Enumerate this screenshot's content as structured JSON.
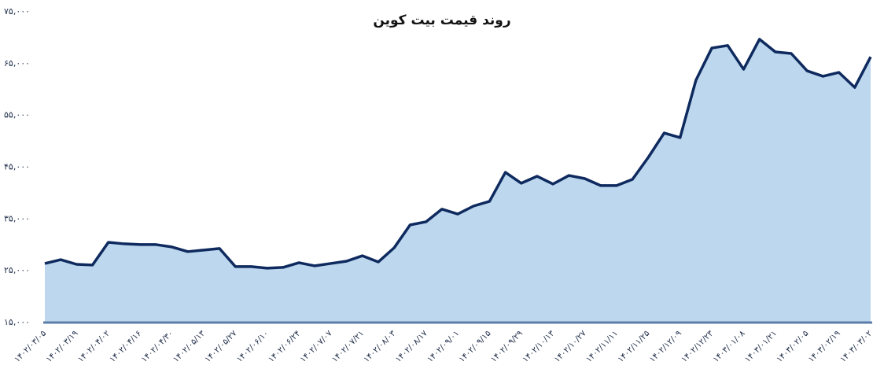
{
  "chart_data": {
    "type": "area",
    "title": "روند قیمت بیت کوین",
    "categories": [
      "۱۴۰۲/۰۳/۰۵",
      null,
      "۱۴۰۲/۰۳/۱۹",
      null,
      "۱۴۰۲/۰۴/۰۲",
      null,
      "۱۴۰۲/۰۴/۱۶",
      null,
      "۱۴۰۲/۰۴/۳۰",
      null,
      "۱۴۰۲/۰۵/۱۳",
      null,
      "۱۴۰۲/۰۵/۲۷",
      null,
      "۱۴۰۲/۰۶/۱۰",
      null,
      "۱۴۰۲/۰۶/۲۴",
      null,
      "۱۴۰۲/۰۷/۰۷",
      null,
      "۱۴۰۲/۰۷/۲۱",
      null,
      "۱۴۰۲/۰۸/۰۳",
      null,
      "۱۴۰۲/۰۸/۱۷",
      null,
      "۱۴۰۲/۰۹/۰۱",
      null,
      "۱۴۰۲/۰۹/۱۵",
      null,
      "۱۴۰۲/۰۹/۲۹",
      null,
      "۱۴۰۲/۱۰/۱۳",
      null,
      "۱۴۰۲/۱۰/۲۷",
      null,
      "۱۴۰۲/۱۱/۱۱",
      null,
      "۱۴۰۲/۱۱/۲۵",
      null,
      "۱۴۰۲/۱۲/۰۹",
      null,
      "۱۴۰۲/۱۲/۲۳",
      null,
      "۱۴۰۳/۰۱/۰۸",
      null,
      "۱۴۰۳/۰۱/۲۱",
      null,
      "۱۴۰۳/۰۲/۰۵",
      null,
      "۱۴۰۳/۰۲/۱۹",
      null,
      "۱۴۰۳/۰۳/۰۲"
    ],
    "values": [
      26400,
      27150,
      26240,
      26100,
      30500,
      30200,
      30050,
      30050,
      29600,
      28700,
      29000,
      29300,
      25800,
      25800,
      25500,
      25650,
      26550,
      25950,
      26400,
      26850,
      27900,
      26700,
      29450,
      33850,
      34450,
      36900,
      35950,
      37500,
      38400,
      44000,
      41900,
      43250,
      41750,
      43400,
      42800,
      41450,
      41450,
      42650,
      46900,
      51600,
      50700,
      61800,
      68000,
      68500,
      63900,
      69700,
      67250,
      66950,
      63600,
      62550,
      63300,
      60400,
      66300
    ],
    "color": "#bdd7ee",
    "line_color": "#0e2a5e",
    "ylim": [
      15000,
      75000
    ],
    "yticks": [
      {
        "value": 15000,
        "label": "۱۵,۰۰۰"
      },
      {
        "value": 25000,
        "label": "۲۵,۰۰۰"
      },
      {
        "value": 35000,
        "label": "۳۵,۰۰۰"
      },
      {
        "value": 45000,
        "label": "۴۵,۰۰۰"
      },
      {
        "value": 55000,
        "label": "۵۵,۰۰۰"
      },
      {
        "value": 65000,
        "label": "۶۵,۰۰۰"
      },
      {
        "value": 75000,
        "label": "۷۵,۰۰۰"
      }
    ],
    "grid": false
  }
}
